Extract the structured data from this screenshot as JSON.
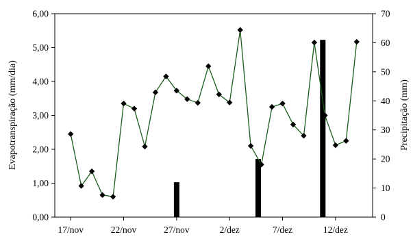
{
  "chart_data": {
    "type": "line",
    "title": "",
    "x_tick_labels": [
      "17/nov",
      "22/nov",
      "27/nov",
      "2/dez",
      "7/dez",
      "12/dez"
    ],
    "x_tick_day_index": [
      0,
      5,
      10,
      15,
      20,
      25
    ],
    "ylabel_left": "Evapotranspiração (mm/dia)",
    "ylabel_right": "Precipitação (mm)",
    "ylim_left": [
      0,
      6
    ],
    "ylim_right": [
      0,
      70
    ],
    "yticks_left": [
      "0,00",
      "1,00",
      "2,00",
      "3,00",
      "4,00",
      "5,00",
      "6,00"
    ],
    "yticks_right": [
      "0",
      "10",
      "20",
      "30",
      "40",
      "50",
      "60",
      "70"
    ],
    "grid": false,
    "colors": {
      "line": "#1a5c1a",
      "marker": "#000000",
      "bar": "#000000"
    },
    "series": [
      {
        "type": "line",
        "axis": "left",
        "x": [
          0,
          1,
          2,
          3,
          4,
          5,
          6,
          7,
          8,
          9,
          10,
          11,
          12,
          13,
          14,
          15,
          16,
          17,
          18,
          19,
          20,
          21,
          22,
          23,
          24,
          25,
          26,
          27
        ],
        "values": [
          2.45,
          0.92,
          1.35,
          0.65,
          0.6,
          3.35,
          3.2,
          2.08,
          3.68,
          4.15,
          3.73,
          3.48,
          3.37,
          4.45,
          3.62,
          3.38,
          5.52,
          2.1,
          1.55,
          3.25,
          3.35,
          2.73,
          2.4,
          5.15,
          3.0,
          2.12,
          2.25,
          5.17
        ]
      },
      {
        "type": "bar",
        "axis": "right",
        "x": [
          10,
          17.7,
          23.8
        ],
        "values": [
          12,
          20,
          61
        ]
      }
    ]
  }
}
